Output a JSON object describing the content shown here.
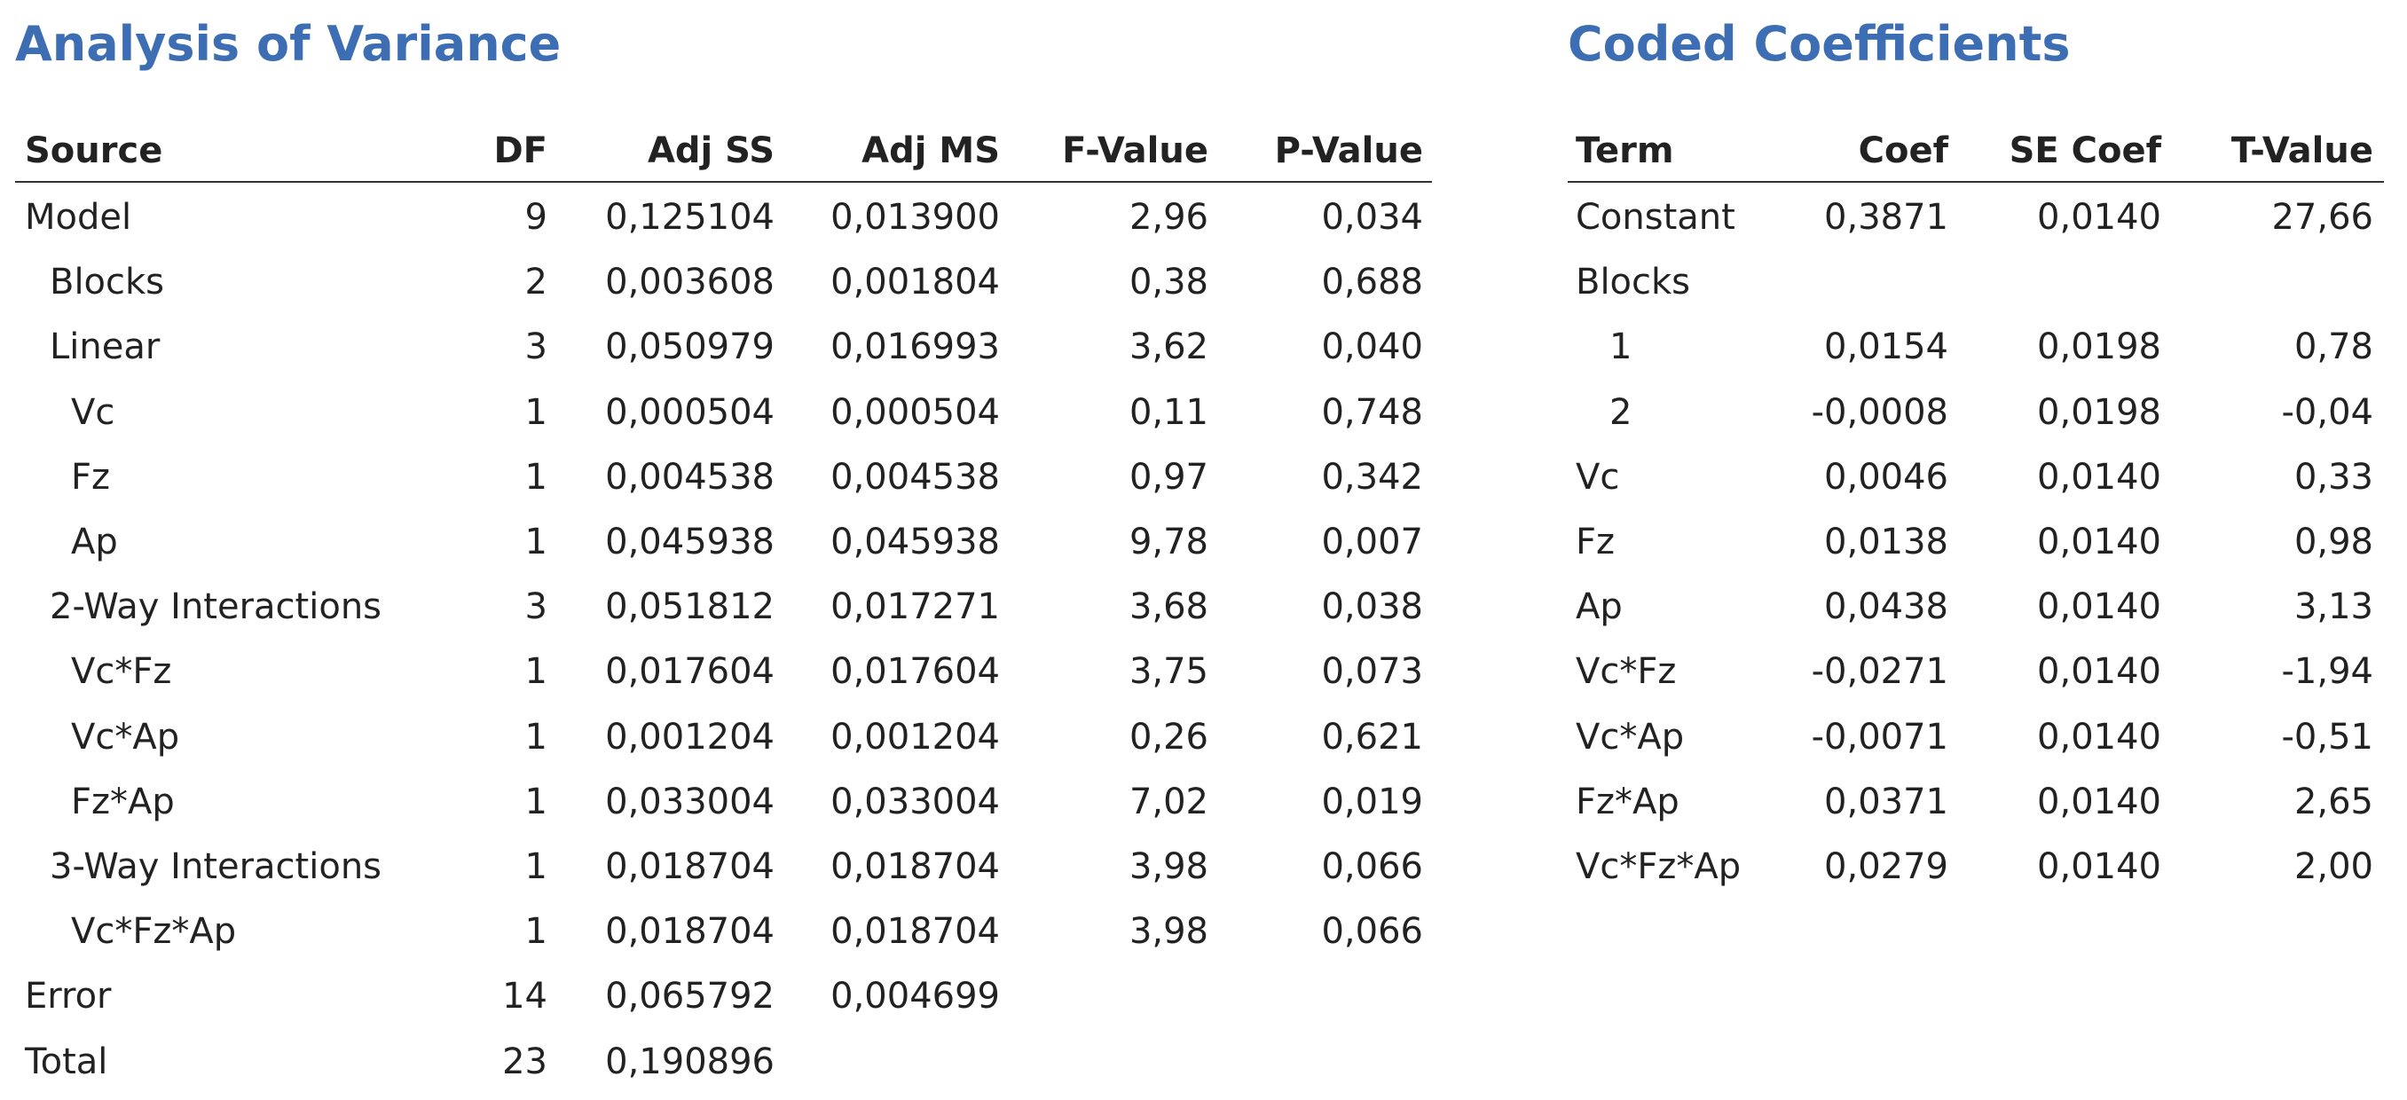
{
  "anova": {
    "title": "Analysis of Variance",
    "headers": [
      "Source",
      "DF",
      "Adj SS",
      "Adj MS",
      "F-Value",
      "P-Value"
    ],
    "rows": [
      [
        "Model",
        "9",
        "0,125104",
        "0,013900",
        "2,96",
        "0,034"
      ],
      [
        "Blocks",
        "2",
        "0,003608",
        "0,001804",
        "0,38",
        "0,688"
      ],
      [
        "Linear",
        "3",
        "0,050979",
        "0,016993",
        "3,62",
        "0,040"
      ],
      [
        "Vc",
        "1",
        "0,000504",
        "0,000504",
        "0,11",
        "0,748"
      ],
      [
        "Fz",
        "1",
        "0,004538",
        "0,004538",
        "0,97",
        "0,342"
      ],
      [
        "Ap",
        "1",
        "0,045938",
        "0,045938",
        "9,78",
        "0,007"
      ],
      [
        "2-Way Interactions",
        "3",
        "0,051812",
        "0,017271",
        "3,68",
        "0,038"
      ],
      [
        "Vc*Fz",
        "1",
        "0,017604",
        "0,017604",
        "3,75",
        "0,073"
      ],
      [
        "Vc*Ap",
        "1",
        "0,001204",
        "0,001204",
        "0,26",
        "0,621"
      ],
      [
        "Fz*Ap",
        "1",
        "0,033004",
        "0,033004",
        "7,02",
        "0,019"
      ],
      [
        "3-Way Interactions",
        "1",
        "0,018704",
        "0,018704",
        "3,98",
        "0,066"
      ],
      [
        "Vc*Fz*Ap",
        "1",
        "0,018704",
        "0,018704",
        "3,98",
        "0,066"
      ],
      [
        "Error",
        "14",
        "0,065792",
        "0,004699"
      ],
      [
        "Total",
        "23",
        "0,190896"
      ]
    ]
  },
  "coefficients": {
    "title": "Coded Coefficients",
    "headers": [
      "Term",
      "Coef",
      "SE Coef",
      "T-Value"
    ],
    "rows": [
      [
        "Constant",
        "0,3871",
        "0,0140",
        "27,66"
      ],
      [
        "Blocks"
      ],
      [
        "1",
        "0,0154",
        "0,0198",
        "0,78"
      ],
      [
        "2",
        "-0,0008",
        "0,0198",
        "-0,04"
      ],
      [
        "Vc",
        "0,0046",
        "0,0140",
        "0,33"
      ],
      [
        "Fz",
        "0,0138",
        "0,0140",
        "0,98"
      ],
      [
        "Ap",
        "0,0438",
        "0,0140",
        "3,13"
      ],
      [
        "Vc*Fz",
        "-0,0271",
        "0,0140",
        "-1,94"
      ],
      [
        "Vc*Ap",
        "-0,0071",
        "0,0140",
        "-0,51"
      ],
      [
        "Fz*Ap",
        "0,0371",
        "0,0140",
        "2,65"
      ],
      [
        "Vc*Fz*Ap",
        "0,0279",
        "0,0140",
        "2,00"
      ]
    ]
  }
}
